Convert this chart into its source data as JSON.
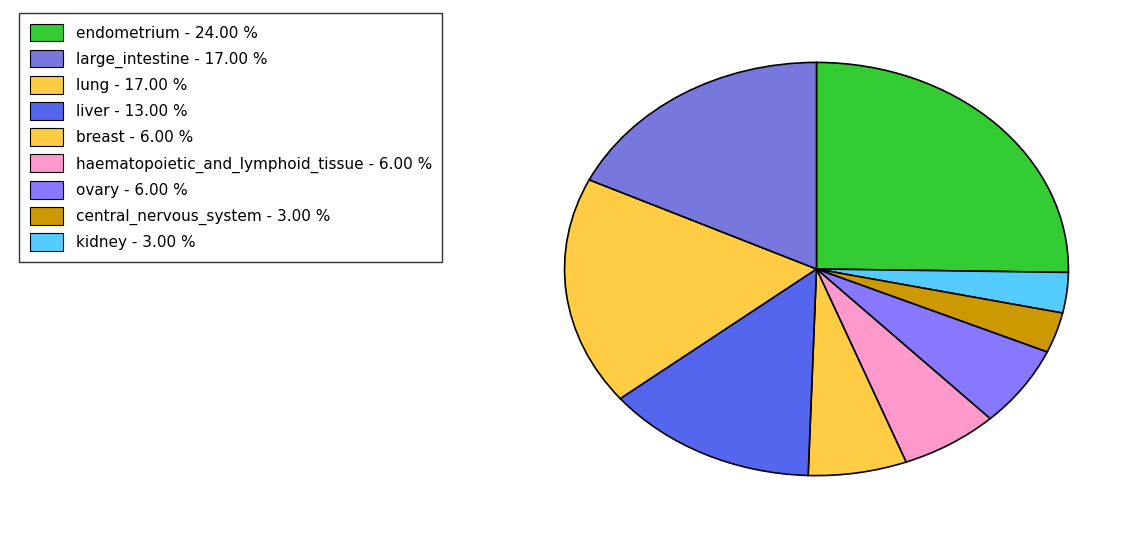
{
  "labels": [
    "endometrium",
    "kidney",
    "central_nervous_system",
    "ovary",
    "haematopoietic_and_lymphoid_tissue",
    "breast",
    "liver",
    "lung",
    "large_intestine"
  ],
  "values": [
    24,
    3,
    3,
    6,
    6,
    6,
    13,
    17,
    17
  ],
  "colors": [
    "#33cc33",
    "#55ccff",
    "#cc9900",
    "#8877ff",
    "#ff99cc",
    "#ffcc44",
    "#5566ee",
    "#ffcc44",
    "#7777dd"
  ],
  "legend_labels": [
    "endometrium - 24.00 %",
    "large_intestine - 17.00 %",
    "lung - 17.00 %",
    "liver - 13.00 %",
    "breast - 6.00 %",
    "haematopoietic_and_lymphoid_tissue - 6.00 %",
    "ovary - 6.00 %",
    "central_nervous_system - 3.00 %",
    "kidney - 3.00 %"
  ],
  "legend_colors": [
    "#33cc33",
    "#7777dd",
    "#ffcc44",
    "#5566ee",
    "#ffcc44",
    "#ff99cc",
    "#8877ff",
    "#cc9900",
    "#55ccff"
  ],
  "startangle": 90,
  "figsize": [
    11.34,
    5.38
  ],
  "dpi": 100
}
